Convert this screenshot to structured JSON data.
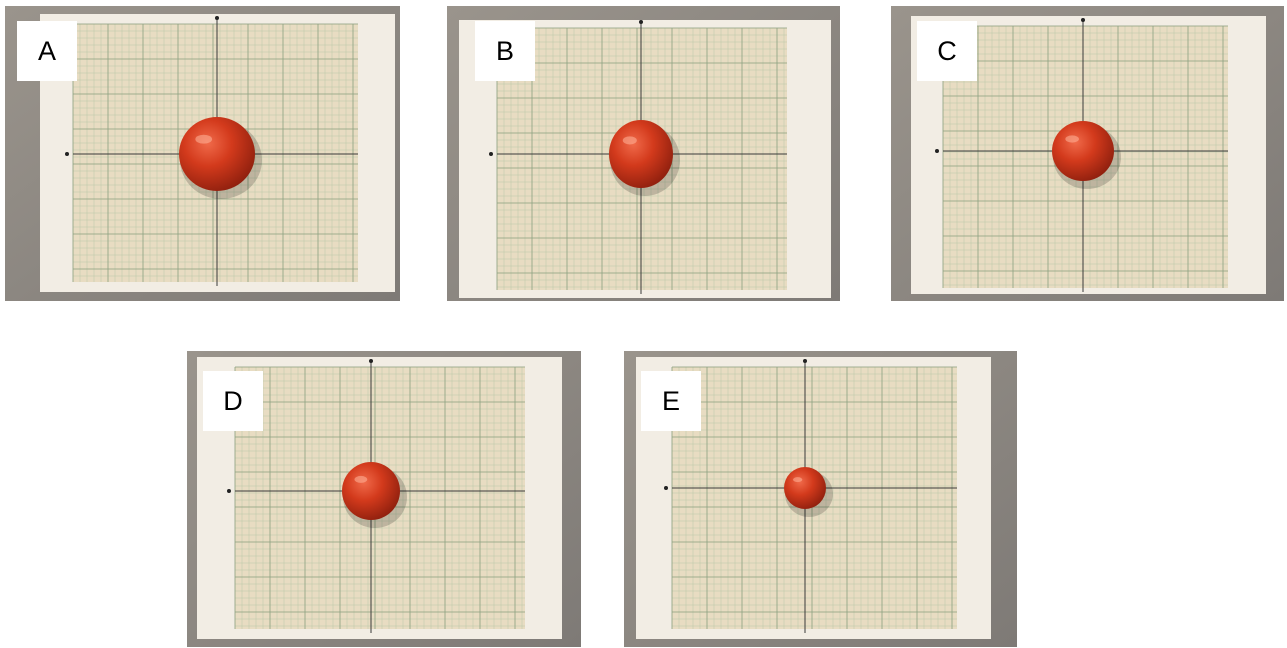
{
  "panels": [
    {
      "id": "panel-a",
      "label": "A",
      "tomato": {
        "cx": 212,
        "cy": 148,
        "rx": 38,
        "ry": 37
      },
      "page": {
        "x": 35,
        "y": 8,
        "w": 355,
        "h": 278
      },
      "grid": {
        "x": 68,
        "y": 18,
        "w": 285,
        "h": 258
      }
    },
    {
      "id": "panel-b",
      "label": "B",
      "tomato": {
        "cx": 194,
        "cy": 148,
        "rx": 32,
        "ry": 34
      },
      "page": {
        "x": 12,
        "y": 14,
        "w": 372,
        "h": 278
      },
      "grid": {
        "x": 50,
        "y": 22,
        "w": 290,
        "h": 262
      }
    },
    {
      "id": "panel-c",
      "label": "C",
      "tomato": {
        "cx": 192,
        "cy": 145,
        "rx": 31,
        "ry": 30
      },
      "page": {
        "x": 20,
        "y": 10,
        "w": 355,
        "h": 278
      },
      "grid": {
        "x": 52,
        "y": 20,
        "w": 285,
        "h": 262
      }
    },
    {
      "id": "panel-d",
      "label": "D",
      "tomato": {
        "cx": 184,
        "cy": 140,
        "rx": 29,
        "ry": 29
      },
      "page": {
        "x": 10,
        "y": 6,
        "w": 365,
        "h": 282
      },
      "grid": {
        "x": 48,
        "y": 16,
        "w": 290,
        "h": 262
      }
    },
    {
      "id": "panel-e",
      "label": "E",
      "tomato": {
        "cx": 181,
        "cy": 137,
        "rx": 21,
        "ry": 21
      },
      "page": {
        "x": 12,
        "y": 6,
        "w": 355,
        "h": 282
      },
      "grid": {
        "x": 48,
        "y": 16,
        "w": 285,
        "h": 262
      }
    }
  ]
}
